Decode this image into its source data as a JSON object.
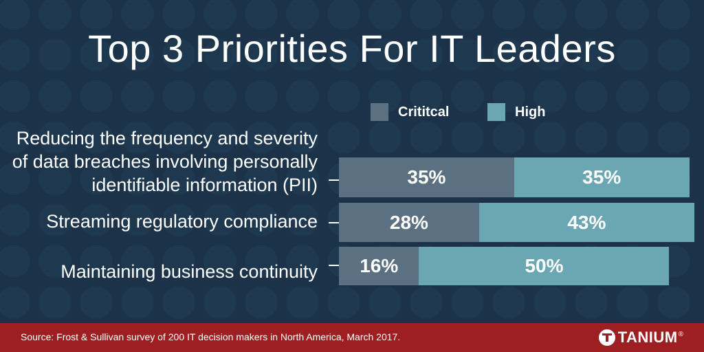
{
  "page": {
    "title": "Top 3 Priorities For IT Leaders"
  },
  "chart_data": {
    "type": "bar",
    "orientation": "horizontal",
    "stacked": true,
    "categories": [
      "Reducing the frequency and severity of data breaches involving personally identifiable information (PII)",
      "Streaming regulatory compliance",
      "Maintaining business continuity"
    ],
    "series": [
      {
        "name": "Crititcal",
        "values": [
          35,
          28,
          16
        ],
        "labels": [
          "35%",
          "28%",
          "16%"
        ],
        "color": "#5b7080"
      },
      {
        "name": "High",
        "values": [
          35,
          43,
          50
        ],
        "labels": [
          "35%",
          "43%",
          "50%"
        ],
        "color": "#6aa7b3"
      }
    ],
    "xlim": [
      0,
      70
    ],
    "legend": "top",
    "grid": false
  },
  "footer": {
    "source": "Source: Frost & Sullivan survey of 200 IT decision makers in North America, March 2017.",
    "logo_text": "TANIUM",
    "logo_mark": "®",
    "color": "#9e1f21"
  }
}
